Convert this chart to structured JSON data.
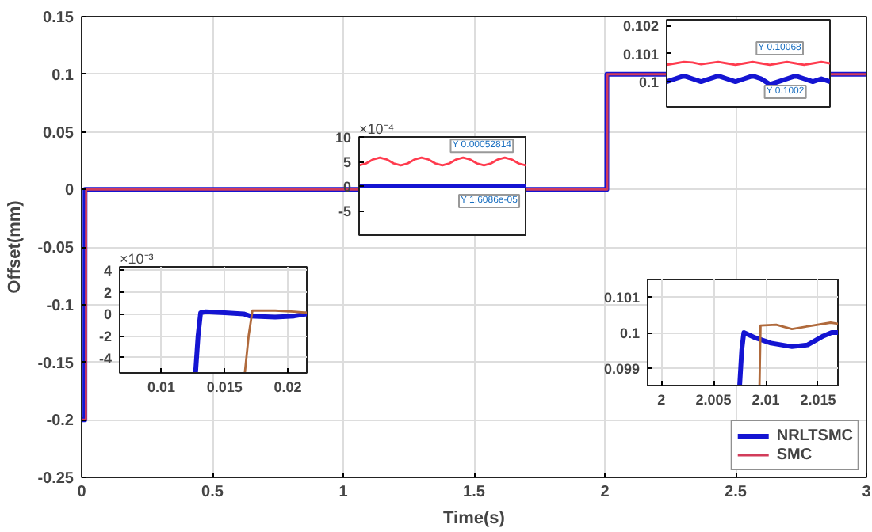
{
  "chart_data": [
    {
      "type": "line",
      "xlabel": "Time(s)",
      "ylabel": "Offset(mm)",
      "x": [
        0,
        0.0125,
        0.013,
        2,
        2.0075,
        2.0078,
        3
      ],
      "xlim": [
        0,
        3
      ],
      "ylim": [
        -0.25,
        0.15
      ],
      "xticks": [
        0,
        0.5,
        1,
        1.5,
        2,
        2.5,
        3
      ],
      "yticks": [
        -0.25,
        -0.2,
        -0.15,
        -0.1,
        -0.05,
        0,
        0.05,
        0.1,
        0.15
      ],
      "grid": true,
      "legend": "bottom right",
      "series": [
        {
          "name": "NRLTSMC",
          "color": "#1414d2",
          "values": [
            -0.2,
            -0.2,
            0,
            0,
            0,
            0.1,
            0.1
          ]
        },
        {
          "name": "SMC",
          "color": "#d23c5a",
          "x": [
            0,
            0.0165,
            0.0172,
            2,
            2.0094,
            2.0096,
            3
          ],
          "values": [
            -0.2,
            -0.2,
            0,
            0,
            0,
            0.1,
            0.1
          ]
        }
      ]
    },
    {
      "type": "line",
      "categories": [
        null,
        null,
        null,
        null,
        null,
        null,
        null,
        null,
        null,
        null,
        null,
        null,
        null,
        null,
        null,
        null,
        null,
        null,
        null,
        null,
        null,
        null,
        null,
        null,
        null
      ],
      "ylim": [
        -10,
        10
      ],
      "yticks": [
        -5,
        0,
        5,
        10
      ],
      "tick_labels": "y",
      "annotations": [
        "×10⁻⁴",
        {
          "text": "Y 0.00052814",
          "y": 5.2814
        },
        {
          "text": "Y 1.6086e-05",
          "y": 0.16086
        }
      ],
      "series": [
        {
          "color": "#1414d2",
          "values": [
            0,
            0,
            0,
            0,
            0,
            0,
            0,
            0,
            0,
            0,
            0,
            0,
            0,
            0,
            0,
            0,
            0,
            0,
            0,
            0,
            0,
            0,
            0,
            0,
            0
          ]
        },
        {
          "color": "#ff3b4e",
          "values": [
            4.2,
            4.6,
            5.4,
            5.8,
            5.4,
            4.6,
            4.2,
            4.6,
            5.4,
            5.8,
            5.4,
            4.6,
            4.2,
            4.6,
            5.4,
            5.8,
            5.4,
            4.6,
            4.2,
            4.6,
            5.4,
            5.8,
            5.4,
            4.6,
            4.2
          ]
        }
      ]
    },
    {
      "type": "line",
      "categories": [
        null,
        null,
        null,
        null,
        null,
        null,
        null,
        null,
        null,
        null,
        null,
        null,
        null,
        null,
        null,
        null,
        null,
        null,
        null,
        null
      ],
      "ylim": [
        0.0991,
        0.1022
      ],
      "yticks": [
        0.1,
        0.101,
        0.102
      ],
      "tick_labels": "y",
      "annotations": [
        {
          "text": "Y 0.10068",
          "y": 0.10068
        },
        {
          "text": "Y 0.1002",
          "y": 0.1002
        }
      ],
      "series": [
        {
          "color": "#1414d2",
          "values": [
            0.1,
            0.1001,
            0.1002,
            0.1001,
            0.1,
            0.1001,
            0.1002,
            0.1001,
            0.1,
            0.1001,
            0.1002,
            0.1001,
            0.0999,
            0.1,
            0.1001,
            0.1002,
            0.1001,
            0.1,
            0.1001,
            0.1
          ]
        },
        {
          "color": "#ff3b4e",
          "values": [
            0.1006,
            0.10065,
            0.1007,
            0.10068,
            0.10062,
            0.10066,
            0.1007,
            0.10065,
            0.1006,
            0.10065,
            0.1007,
            0.10065,
            0.1006,
            0.10065,
            0.1007,
            0.10065,
            0.1006,
            0.10065,
            0.1007,
            0.10065
          ]
        }
      ]
    },
    {
      "type": "line",
      "xlim": [
        0.0067,
        0.0215
      ],
      "ylim": [
        -5.4,
        4.3
      ],
      "xticks": [
        0.01,
        0.015,
        0.02
      ],
      "yticks": [
        -4,
        -2,
        0,
        2,
        4
      ],
      "grid": true,
      "annotations": [
        "×10⁻³"
      ],
      "series": [
        {
          "color": "#1414d2",
          "x": [
            0.0127,
            0.0129,
            0.0131,
            0.0135,
            0.015,
            0.0165,
            0.017,
            0.019,
            0.0205,
            0.0215
          ],
          "values": [
            -5.4,
            -2,
            0.1,
            0.2,
            0.1,
            0,
            -0.2,
            -0.3,
            -0.2,
            0
          ]
        },
        {
          "color": "#b06a3c",
          "x": [
            0.0166,
            0.0169,
            0.0172,
            0.019,
            0.0205,
            0.0215
          ],
          "values": [
            -5.4,
            -2,
            0.3,
            0.3,
            0.2,
            0.1
          ]
        }
      ]
    },
    {
      "type": "line",
      "xlim": [
        1.9987,
        2.0169
      ],
      "ylim": [
        0.0985,
        0.1015
      ],
      "xticks": [
        2,
        2.005,
        2.01,
        2.015
      ],
      "yticks": [
        0.099,
        0.1,
        0.101
      ],
      "grid": true,
      "series": [
        {
          "color": "#1414d2",
          "x": [
            2.0075,
            2.0077,
            2.0079,
            2.009,
            2.0105,
            2.0125,
            2.014,
            2.0155,
            2.0163,
            2.0169
          ],
          "values": [
            0.0985,
            0.0995,
            0.1,
            0.09985,
            0.0997,
            0.0996,
            0.09965,
            0.0999,
            0.1,
            0.1
          ]
        },
        {
          "color": "#b06a3c",
          "x": [
            2.0094,
            2.0095,
            2.011,
            2.0125,
            2.0145,
            2.0162,
            2.0169
          ],
          "values": [
            0.0985,
            0.1002,
            0.10022,
            0.1001,
            0.1002,
            0.10028,
            0.10025
          ]
        }
      ]
    }
  ]
}
